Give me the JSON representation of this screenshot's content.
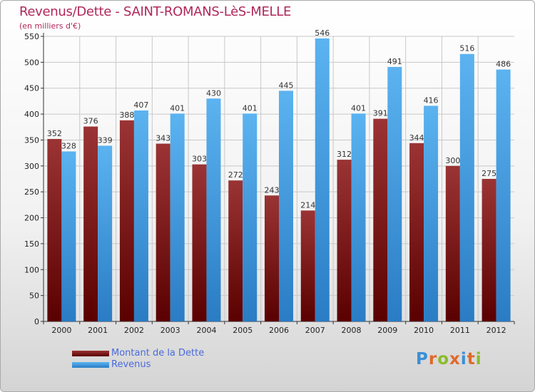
{
  "title": "Revenus/Dette - SAINT-ROMANS-LèS-MELLE",
  "subtitle": "(en milliers d'€)",
  "colors": {
    "dette": "#8b1a1a",
    "revenus": "#3a9de6",
    "title": "#b0285a"
  },
  "logo": {
    "text": "Proxiti"
  },
  "chart_data": {
    "type": "bar",
    "title": "Revenus/Dette - SAINT-ROMANS-LèS-MELLE",
    "ylabel": "(en milliers d'€)",
    "categories": [
      "2000",
      "2001",
      "2002",
      "2003",
      "2004",
      "2005",
      "2006",
      "2007",
      "2008",
      "2009",
      "2010",
      "2011",
      "2012"
    ],
    "yticks": [
      0,
      50,
      100,
      150,
      200,
      250,
      300,
      350,
      400,
      450,
      500,
      550
    ],
    "ylim": [
      0,
      550
    ],
    "grid": true,
    "legend_position": "bottom-left",
    "series": [
      {
        "name": "Montant de la Dette",
        "values": [
          352,
          376,
          388,
          343,
          303,
          272,
          243,
          214,
          312,
          391,
          344,
          300,
          275
        ]
      },
      {
        "name": "Revenus",
        "values": [
          328,
          339,
          407,
          401,
          430,
          401,
          445,
          546,
          401,
          491,
          416,
          516,
          486
        ]
      }
    ]
  }
}
